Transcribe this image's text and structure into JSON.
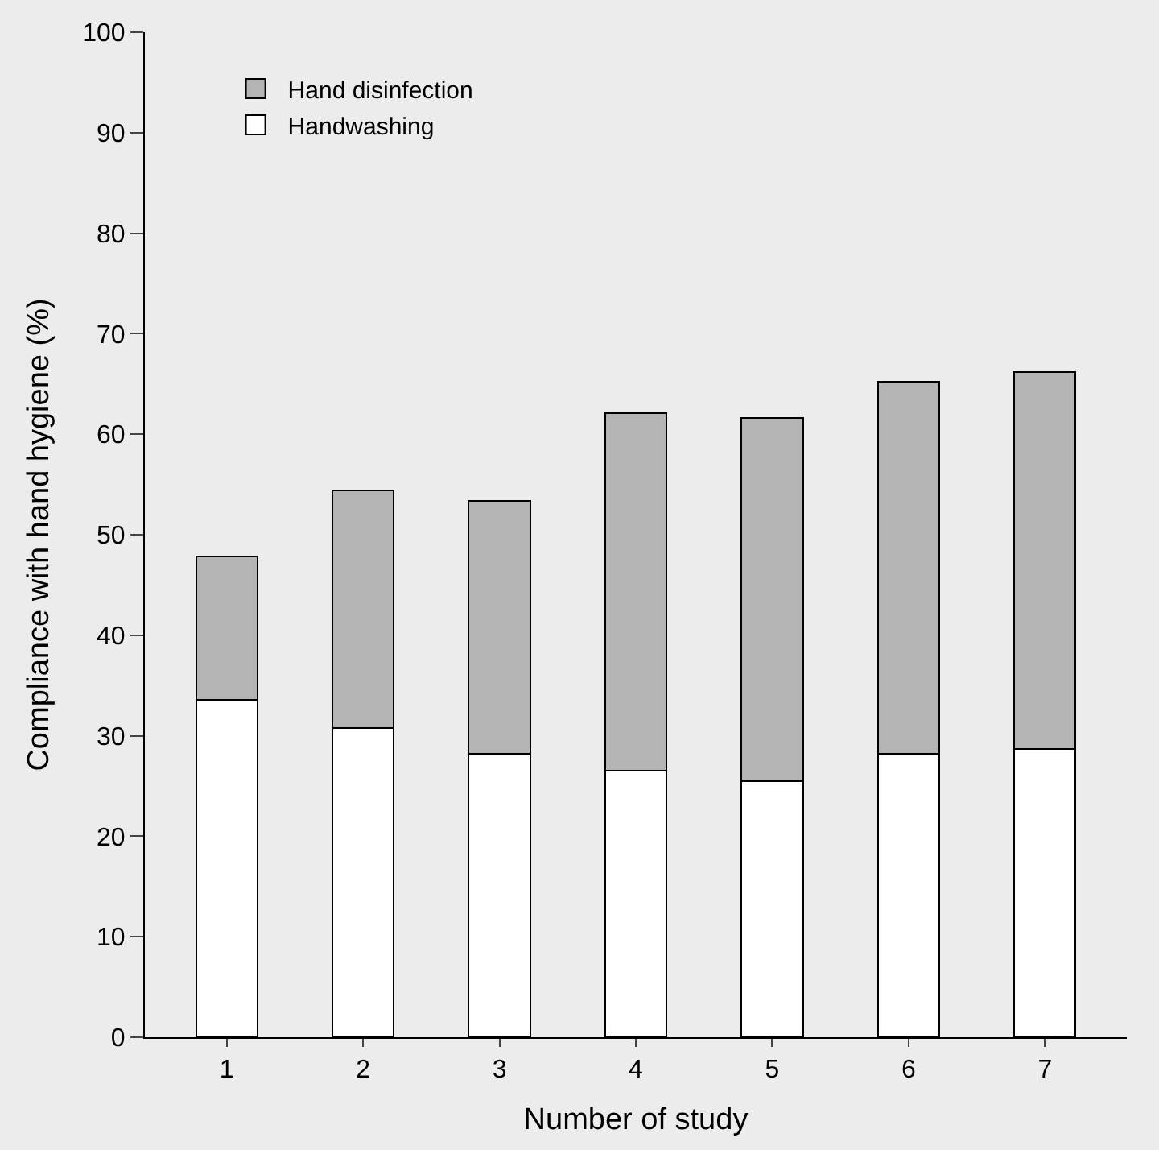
{
  "chart_data": {
    "type": "bar",
    "stacked": true,
    "xlabel": "Number of study",
    "ylabel": "Compliance with hand hygiene (%)",
    "categories": [
      "1",
      "2",
      "3",
      "4",
      "5",
      "6",
      "7"
    ],
    "series": [
      {
        "name": "Handwashing",
        "color": "#ffffff",
        "values": [
          33.6,
          30.8,
          28.2,
          26.5,
          25.5,
          28.2,
          28.7
        ]
      },
      {
        "name": "Hand disinfection",
        "color": "#b4b4b4",
        "values": [
          14.2,
          23.6,
          25.2,
          35.6,
          36.1,
          37.0,
          37.5
        ]
      }
    ],
    "ylim": [
      0,
      100
    ],
    "yticks": [
      0,
      10,
      20,
      30,
      40,
      50,
      60,
      70,
      80,
      90,
      100
    ],
    "grid": false,
    "legend": "top left"
  }
}
